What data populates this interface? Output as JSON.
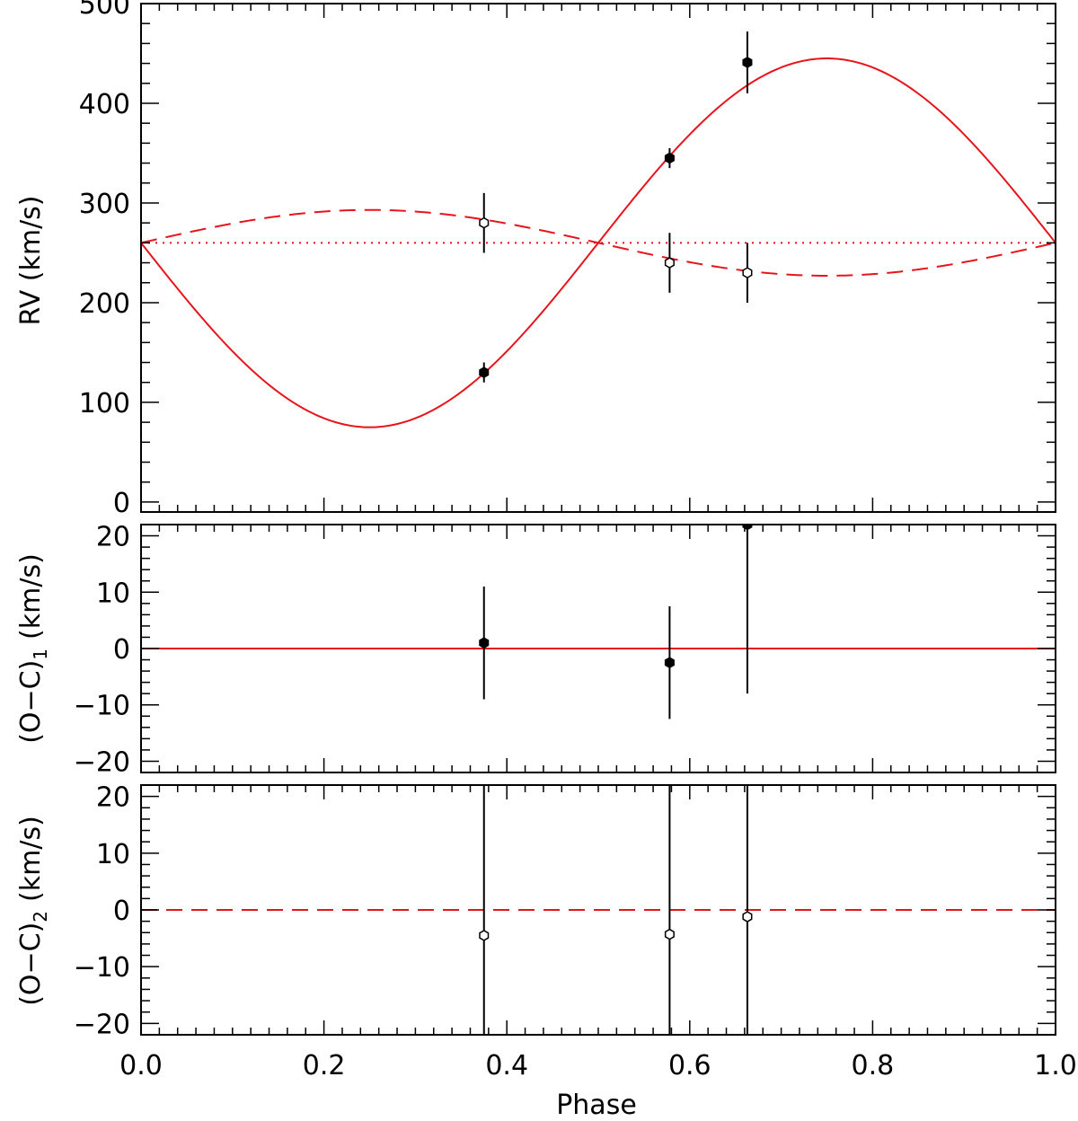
{
  "chart_data": [
    {
      "type": "scatter",
      "panel": "rv",
      "ylabel": "RV (km/s)",
      "xlim": [
        0.0,
        1.0
      ],
      "ylim": [
        -10,
        500
      ],
      "yticks": [
        0,
        100,
        200,
        300,
        400,
        500
      ],
      "xticks": [
        0.0,
        0.2,
        0.4,
        0.6,
        0.8,
        1.0
      ],
      "grid": false,
      "model": {
        "gamma": 260,
        "K1": 185,
        "K2": 33,
        "color": "#e8141c",
        "primary_style": "solid",
        "secondary_style": "dashed",
        "systemic_style": "dotted"
      },
      "series": [
        {
          "marker": "filled",
          "points": [
            {
              "x": 0.375,
              "y": 130,
              "err": 10
            },
            {
              "x": 0.578,
              "y": 345,
              "err": 10
            },
            {
              "x": 0.663,
              "y": 441,
              "err": 31
            }
          ]
        },
        {
          "marker": "open",
          "points": [
            {
              "x": 0.375,
              "y": 280,
              "err": 30
            },
            {
              "x": 0.578,
              "y": 240,
              "err": 30
            },
            {
              "x": 0.663,
              "y": 230,
              "err": 30
            }
          ]
        }
      ]
    },
    {
      "type": "scatter",
      "panel": "oc1",
      "ylabel": "(O-C)₁ (km/s)",
      "xlim": [
        0.0,
        1.0
      ],
      "ylim": [
        -22,
        22
      ],
      "yticks": [
        -20,
        -10,
        0,
        10,
        20
      ],
      "xticks": [
        0.0,
        0.2,
        0.4,
        0.6,
        0.8,
        1.0
      ],
      "zero_line_style": "solid",
      "series": [
        {
          "marker": "filled",
          "points": [
            {
              "x": 0.375,
              "y": 1.0,
              "err": 10
            },
            {
              "x": 0.578,
              "y": -2.5,
              "err": 10
            },
            {
              "x": 0.663,
              "y": 22,
              "err": 30
            }
          ]
        }
      ]
    },
    {
      "type": "scatter",
      "panel": "oc2",
      "ylabel": "(O-C)₂ (km/s)",
      "xlabel": "Phase",
      "xlim": [
        0.0,
        1.0
      ],
      "ylim": [
        -22,
        22
      ],
      "yticks": [
        -20,
        -10,
        0,
        10,
        20
      ],
      "xticks": [
        0.0,
        0.2,
        0.4,
        0.6,
        0.8,
        1.0
      ],
      "xticklabels": [
        "0.0",
        "0.2",
        "0.4",
        "0.6",
        "0.8",
        "1.0"
      ],
      "zero_line_style": "dashed",
      "series": [
        {
          "marker": "open",
          "points": [
            {
              "x": 0.375,
              "y": -4.5,
              "err": 30
            },
            {
              "x": 0.578,
              "y": -4.3,
              "err": 30
            },
            {
              "x": 0.663,
              "y": -1.2,
              "err": 30
            }
          ]
        }
      ]
    }
  ],
  "labels": {
    "rv_ylabel": "RV (km/s)",
    "oc1_main": "(O−C)",
    "oc1_sub": "1",
    "oc1_units": "(km/s)",
    "oc2_main": "(O−C)",
    "oc2_sub": "2",
    "oc2_units": "(km/s)",
    "xlabel": "Phase"
  }
}
